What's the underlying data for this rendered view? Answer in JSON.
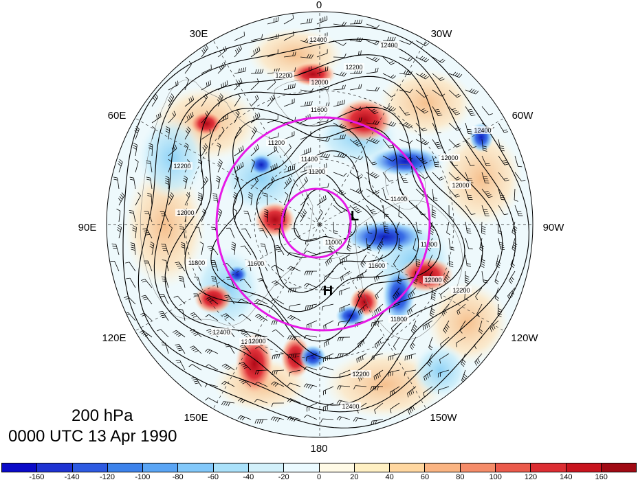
{
  "title": {
    "level": "200 hPa",
    "time": "0000 UTC 13 Apr 1990"
  },
  "longitude_labels": [
    "0",
    "30W",
    "60W",
    "90W",
    "120W",
    "150W",
    "180",
    "150E",
    "120E",
    "90E",
    "60E",
    "30E"
  ],
  "height_contour_labels": [
    "12400",
    "12400",
    "12200",
    "12000",
    "11600",
    "11400",
    "11200",
    "11000",
    "11200",
    "11400",
    "11600",
    "11800",
    "12000",
    "12200",
    "12400",
    "12200",
    "12000",
    "11600",
    "11800",
    "12000",
    "12200",
    "12400",
    "12000",
    "11800",
    "12000",
    "12200",
    "12400",
    "12000"
  ],
  "pressure_systems": [
    {
      "label": "L",
      "type": "low"
    },
    {
      "label": "H",
      "type": "high"
    }
  ],
  "colorbar": {
    "labels": [
      "-160",
      "-140",
      "-120",
      "-100",
      "-80",
      "-60",
      "-40",
      "-20",
      "0",
      "20",
      "40",
      "60",
      "80",
      "100",
      "120",
      "140",
      "160"
    ],
    "colors": [
      "#0a0ac8",
      "#1e32d2",
      "#2d5ae1",
      "#3c82eb",
      "#5aa5f5",
      "#82c8fa",
      "#aae1fa",
      "#d2f0fa",
      "#ebfaff",
      "#fffae6",
      "#fff0c3",
      "#ffd7a0",
      "#fab482",
      "#f58c69",
      "#eb5a4b",
      "#dc2d32",
      "#c8141e",
      "#a00a14"
    ]
  },
  "colors": {
    "circle_accent": "#e619e6",
    "contour": "#000000",
    "anomaly_positive": "#d7262d",
    "anomaly_negative": "#1e46d2"
  }
}
